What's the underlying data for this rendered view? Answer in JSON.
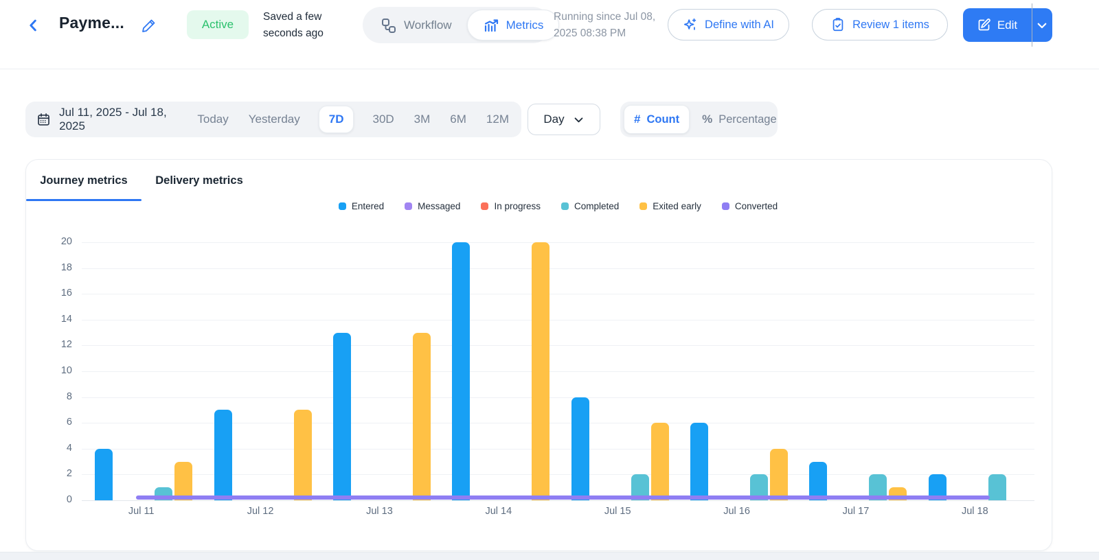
{
  "header": {
    "title": "Payme...",
    "status_badge": "Active",
    "saved_text": "Saved a few seconds ago",
    "view_toggle": {
      "workflow": "Workflow",
      "metrics": "Metrics"
    },
    "running_since": "Running since Jul 08, 2025 08:38 PM",
    "define_ai_label": "Define with AI",
    "review_label": "Review 1 items",
    "edit_label": "Edit"
  },
  "filters": {
    "date_range": "Jul 11, 2025 - Jul 18, 2025",
    "presets": [
      "Today",
      "Yesterday",
      "7D",
      "30D",
      "3M",
      "6M",
      "12M"
    ],
    "active_preset": "7D",
    "granularity": "Day",
    "count_icon": "#",
    "percentage_icon": "%",
    "mode_toggle": {
      "count": "Count",
      "percentage": "Percentage"
    },
    "active_mode": "Count"
  },
  "tabs": [
    {
      "label": "Journey metrics",
      "active": true
    },
    {
      "label": "Delivery metrics",
      "active": false
    }
  ],
  "chart_data": {
    "type": "bar",
    "title": "",
    "xlabel": "",
    "ylabel": "",
    "categories": [
      "Jul 11",
      "Jul 12",
      "Jul 13",
      "Jul 14",
      "Jul 15",
      "Jul 16",
      "Jul 17",
      "Jul 18"
    ],
    "series": [
      {
        "name": "Entered",
        "type": "bar",
        "color": "#18A0F4",
        "values": [
          4,
          7,
          13,
          20,
          8,
          6,
          3,
          2
        ]
      },
      {
        "name": "Messaged",
        "type": "line",
        "color": "#A185F2",
        "values": [
          0,
          0,
          0,
          0,
          0,
          0,
          0,
          0
        ]
      },
      {
        "name": "In progress",
        "type": "bar",
        "color": "#FB7059",
        "values": [
          0,
          0,
          0,
          0,
          0,
          0,
          0,
          0
        ]
      },
      {
        "name": "Completed",
        "type": "bar",
        "color": "#58C2D5",
        "values": [
          1,
          0,
          0,
          0,
          2,
          2,
          2,
          2
        ]
      },
      {
        "name": "Exited early",
        "type": "bar",
        "color": "#FFC145",
        "values": [
          3,
          7,
          13,
          20,
          6,
          4,
          1,
          0
        ]
      },
      {
        "name": "Converted",
        "type": "line",
        "color": "#8F7EF3",
        "values": [
          0,
          0,
          0,
          0,
          0,
          0,
          0,
          0
        ]
      }
    ],
    "ylim": [
      0,
      20
    ],
    "ytick_step": 2,
    "grid": true,
    "legend_position": "top"
  },
  "colors": {
    "accent_blue": "#2E77F3",
    "edit_button_blue": "#2E7BF4",
    "active_green": "#2BC16D",
    "active_green_bg": "#E4F9ED",
    "filter_bg": "#F1F3F6",
    "gridline": "#EFF1F5"
  }
}
